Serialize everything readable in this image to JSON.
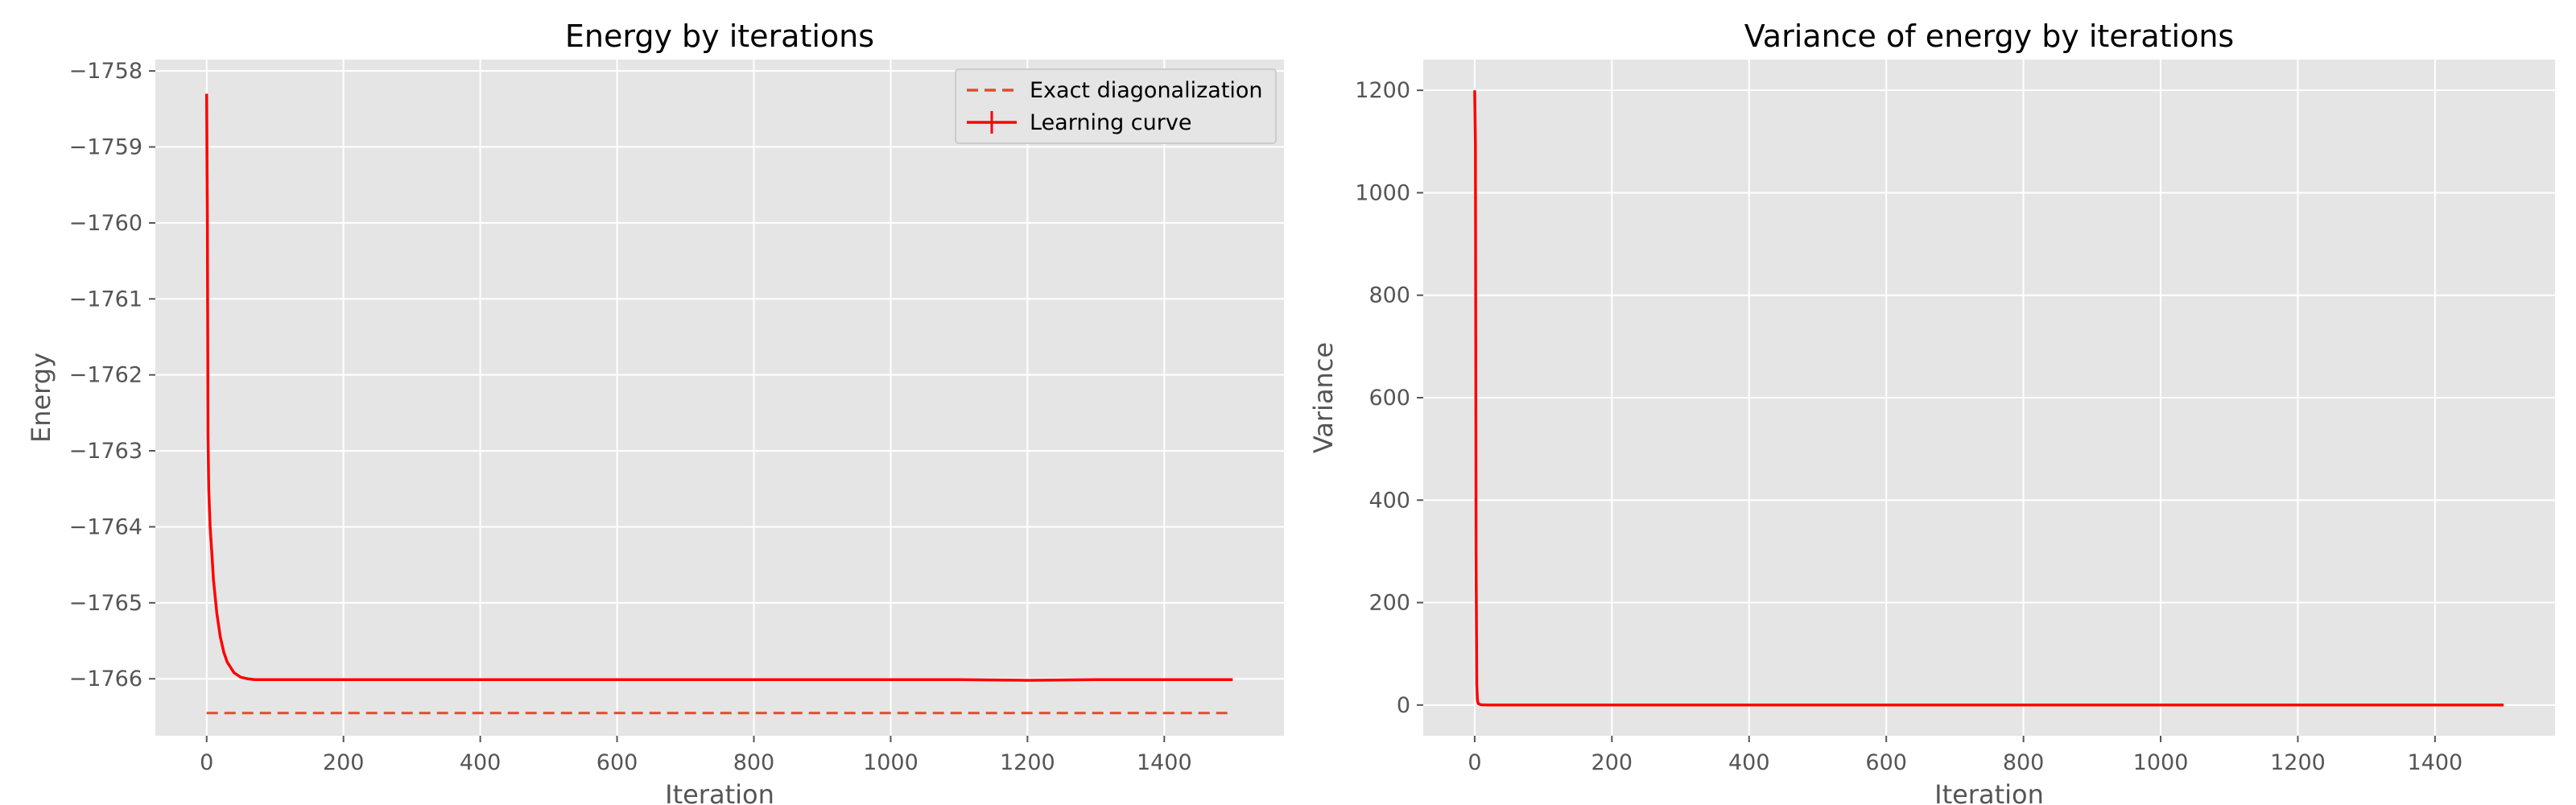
{
  "chart_data": [
    {
      "type": "line",
      "title": "Energy by iterations",
      "xlabel": "Iteration",
      "ylabel": "Energy",
      "xlim": [
        -75,
        1575
      ],
      "ylim": [
        -1766.75,
        -1757.85
      ],
      "xticks": [
        0,
        200,
        400,
        600,
        800,
        1000,
        1200,
        1400
      ],
      "yticks": [
        -1766,
        -1765,
        -1764,
        -1763,
        -1762,
        -1761,
        -1760,
        -1759,
        -1758
      ],
      "grid": true,
      "legend_position": "upper-right",
      "series": [
        {
          "name": "Exact diagonalization",
          "style": "dashed",
          "color": "#e24a33",
          "x": [
            0,
            1500
          ],
          "y": [
            -1766.45,
            -1766.45
          ]
        },
        {
          "name": "Learning curve",
          "style": "solid",
          "color": "#ff0000",
          "x": [
            0,
            1,
            2,
            3,
            5,
            8,
            10,
            15,
            20,
            25,
            30,
            40,
            50,
            60,
            70,
            80,
            100,
            150,
            200,
            300,
            400,
            500,
            600,
            700,
            800,
            900,
            1000,
            1100,
            1200,
            1300,
            1400,
            1500
          ],
          "y": [
            -1758.3,
            -1760.0,
            -1762.8,
            -1763.5,
            -1764.0,
            -1764.4,
            -1764.7,
            -1765.15,
            -1765.45,
            -1765.65,
            -1765.78,
            -1765.92,
            -1765.98,
            -1766.0,
            -1766.01,
            -1766.01,
            -1766.01,
            -1766.01,
            -1766.01,
            -1766.01,
            -1766.01,
            -1766.01,
            -1766.01,
            -1766.01,
            -1766.01,
            -1766.01,
            -1766.01,
            -1766.01,
            -1766.02,
            -1766.01,
            -1766.01,
            -1766.01
          ]
        }
      ]
    },
    {
      "type": "line",
      "title": "Variance of energy by iterations",
      "xlabel": "Iteration",
      "ylabel": "Variance",
      "xlim": [
        -75,
        1575
      ],
      "ylim": [
        -60,
        1260
      ],
      "xticks": [
        0,
        200,
        400,
        600,
        800,
        1000,
        1200,
        1400
      ],
      "yticks": [
        0,
        200,
        400,
        600,
        800,
        1000,
        1200
      ],
      "grid": true,
      "series": [
        {
          "style": "solid",
          "color": "#ff0000",
          "x": [
            0,
            1,
            2,
            3,
            4,
            5,
            8,
            10,
            20,
            50,
            100,
            200,
            400,
            600,
            800,
            1000,
            1200,
            1400,
            1500
          ],
          "y": [
            1200,
            1100,
            300,
            40,
            10,
            3,
            1,
            0.5,
            0.2,
            0.1,
            0,
            0,
            0,
            0,
            0,
            0,
            0,
            0,
            0
          ]
        }
      ]
    }
  ]
}
